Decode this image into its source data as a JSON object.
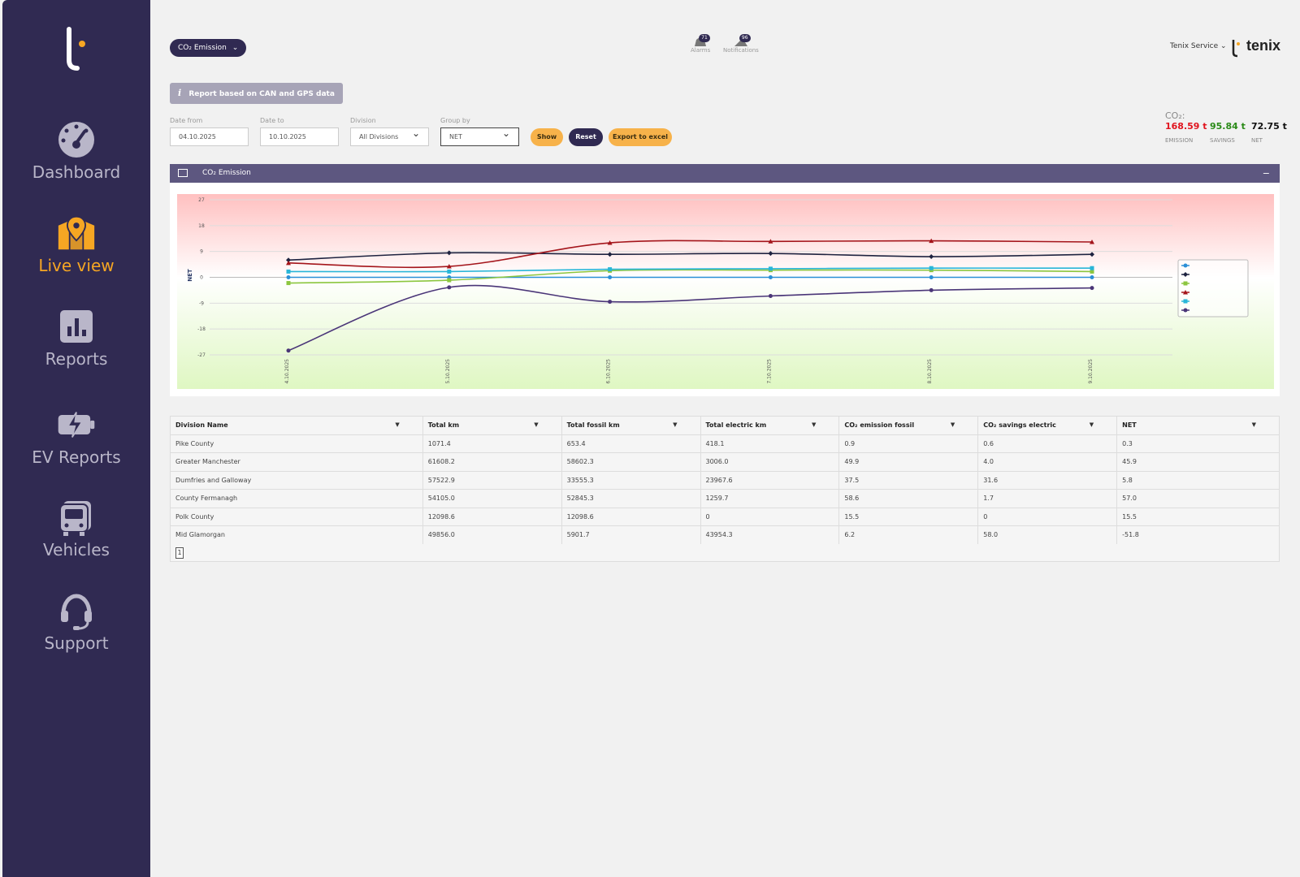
{
  "sidebar": {
    "items": [
      {
        "label": "Dashboard",
        "icon": "dashboard-gauge-icon"
      },
      {
        "label": "Live view",
        "icon": "map-pin-icon",
        "active": true
      },
      {
        "label": "Reports",
        "icon": "bar-chart-icon"
      },
      {
        "label": "EV Reports",
        "icon": "battery-bolt-icon"
      },
      {
        "label": "Vehicles",
        "icon": "bus-icon"
      },
      {
        "label": "Support",
        "icon": "headset-icon"
      }
    ]
  },
  "header": {
    "view_selector": "CO₂ Emission",
    "alarms": {
      "count": "71",
      "label": "Alarms"
    },
    "notifications": {
      "count": "96",
      "label": "Notifications"
    },
    "user": "Tenix Service",
    "brand": "tenix"
  },
  "info_bar": "Report based on CAN and GPS data",
  "filters": {
    "date_from": {
      "label": "Date from",
      "value": "04.10.2025"
    },
    "date_to": {
      "label": "Date to",
      "value": "10.10.2025"
    },
    "division": {
      "label": "Division",
      "value": "All Divisions"
    },
    "group_by": {
      "label": "Group by",
      "value": "NET"
    },
    "show": "Show",
    "reset": "Reset",
    "export": "Export to excel"
  },
  "co2_summary": {
    "title": "CO₂:",
    "emission": {
      "value": "168.59 t",
      "label": "EMISSION",
      "color": "#e0141e"
    },
    "savings": {
      "value": "95.84 t",
      "label": "SAVINGS",
      "color": "#2a8a18"
    },
    "net": {
      "value": "72.75 t",
      "label": "NET",
      "color": "#111111"
    }
  },
  "panel": {
    "title": "CO₂ Emission"
  },
  "chart_data": {
    "type": "line",
    "ylabel": "NET",
    "ylim": [
      -27,
      27
    ],
    "yticks": [
      "27",
      "18",
      "9",
      "0",
      "-9",
      "-18",
      "-27"
    ],
    "x": [
      "4.10.2025",
      "5.10.2025",
      "6.10.2025",
      "7.10.2025",
      "8.10.2025",
      "9.10.2025"
    ],
    "background": "green-to-red gradient",
    "series": [
      {
        "color": "#2b8fd6",
        "marker": "circle",
        "values": [
          0,
          0,
          0,
          0,
          0,
          0
        ]
      },
      {
        "color": "#1e2340",
        "marker": "diamond",
        "values": [
          6,
          8.5,
          8,
          8.3,
          7.2,
          8
        ]
      },
      {
        "color": "#8cc63f",
        "marker": "square",
        "values": [
          -2,
          -1,
          2.3,
          2.5,
          2.5,
          2
        ]
      },
      {
        "color": "#a4151b",
        "marker": "triangle",
        "values": [
          5,
          3.8,
          12,
          12.5,
          12.7,
          12.3
        ]
      },
      {
        "color": "#29b6d8",
        "marker": "square",
        "values": [
          2,
          2,
          2.8,
          3,
          3.2,
          3.2
        ]
      },
      {
        "color": "#4a3578",
        "marker": "circle",
        "values": [
          -25.5,
          -3.5,
          -8.5,
          -6.5,
          -4.5,
          -3.7
        ]
      }
    ]
  },
  "table": {
    "columns": [
      "Division Name",
      "Total km",
      "Total fossil km",
      "Total electric km",
      "CO₂ emission fossil",
      "CO₂ savings electric",
      "NET"
    ],
    "rows": [
      [
        "Pike County",
        "1071.4",
        "653.4",
        "418.1",
        "0.9",
        "0.6",
        "0.3"
      ],
      [
        "Greater Manchester",
        "61608.2",
        "58602.3",
        "3006.0",
        "49.9",
        "4.0",
        "45.9"
      ],
      [
        "Dumfries and Galloway",
        "57522.9",
        "33555.3",
        "23967.6",
        "37.5",
        "31.6",
        "5.8"
      ],
      [
        "County Fermanagh",
        "54105.0",
        "52845.3",
        "1259.7",
        "58.6",
        "1.7",
        "57.0"
      ],
      [
        "Polk County",
        "12098.6",
        "12098.6",
        "0",
        "15.5",
        "0",
        "15.5"
      ],
      [
        "Mid Glamorgan",
        "49856.0",
        "5901.7",
        "43954.3",
        "6.2",
        "58.0",
        "-51.8"
      ]
    ],
    "page": "1"
  }
}
